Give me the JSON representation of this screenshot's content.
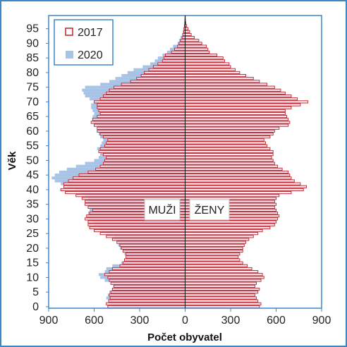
{
  "chart_data": {
    "type": "bar",
    "orientation": "population-pyramid",
    "xlabel": "Počet obyvatel",
    "ylabel": "Věk",
    "xlim": [
      -900,
      900
    ],
    "ylim": [
      0,
      99
    ],
    "x_ticks": [
      -900,
      -600,
      -300,
      0,
      300,
      600,
      900
    ],
    "x_tick_labels": [
      "900",
      "600",
      "300",
      "0",
      "300",
      "600",
      "900"
    ],
    "y_ticks": [
      0,
      5,
      10,
      15,
      20,
      25,
      30,
      35,
      40,
      45,
      50,
      55,
      60,
      65,
      70,
      75,
      80,
      85,
      90,
      95
    ],
    "grid": false,
    "legend_position": "top-left",
    "side_labels": {
      "male": "MUŽI",
      "female": "ŽENY"
    },
    "ages": [
      0,
      1,
      2,
      3,
      4,
      5,
      6,
      7,
      8,
      9,
      10,
      11,
      12,
      13,
      14,
      15,
      16,
      17,
      18,
      19,
      20,
      21,
      22,
      23,
      24,
      25,
      26,
      27,
      28,
      29,
      30,
      31,
      32,
      33,
      34,
      35,
      36,
      37,
      38,
      39,
      40,
      41,
      42,
      43,
      44,
      45,
      46,
      47,
      48,
      49,
      50,
      51,
      52,
      53,
      54,
      55,
      56,
      57,
      58,
      59,
      60,
      61,
      62,
      63,
      64,
      65,
      66,
      67,
      68,
      69,
      70,
      71,
      72,
      73,
      74,
      75,
      76,
      77,
      78,
      79,
      80,
      81,
      82,
      83,
      84,
      85,
      86,
      87,
      88,
      89,
      90,
      91,
      92,
      93,
      94,
      95,
      96,
      97,
      98,
      99
    ],
    "series": [
      {
        "name": "2017",
        "style": "outline",
        "color": "#c0202a",
        "fill": "#f2dfe7",
        "male": [
          510,
          520,
          505,
          495,
          500,
          490,
          480,
          470,
          490,
          500,
          510,
          530,
          500,
          480,
          430,
          410,
          400,
          390,
          390,
          410,
          420,
          430,
          450,
          480,
          520,
          560,
          600,
          630,
          640,
          640,
          660,
          650,
          630,
          610,
          640,
          660,
          660,
          680,
          720,
          790,
          820,
          800,
          800,
          770,
          740,
          700,
          640,
          590,
          560,
          540,
          530,
          520,
          540,
          570,
          560,
          530,
          520,
          510,
          540,
          560,
          580,
          580,
          600,
          620,
          610,
          580,
          560,
          570,
          580,
          580,
          600,
          560,
          540,
          520,
          500,
          470,
          420,
          360,
          320,
          290,
          270,
          240,
          210,
          180,
          150,
          140,
          130,
          90,
          70,
          50,
          40,
          30,
          20,
          15,
          10,
          8,
          5,
          3,
          2,
          1
        ],
        "female": [
          490,
          500,
          480,
          470,
          460,
          480,
          490,
          460,
          470,
          500,
          520,
          510,
          480,
          440,
          410,
          380,
          360,
          350,
          360,
          380,
          380,
          390,
          400,
          420,
          450,
          480,
          510,
          560,
          590,
          600,
          610,
          620,
          610,
          600,
          590,
          600,
          590,
          600,
          620,
          700,
          780,
          800,
          760,
          720,
          700,
          690,
          680,
          640,
          610,
          590,
          580,
          570,
          580,
          580,
          560,
          540,
          530,
          520,
          560,
          580,
          590,
          620,
          680,
          690,
          680,
          670,
          660,
          660,
          700,
          760,
          810,
          740,
          700,
          660,
          630,
          590,
          540,
          490,
          450,
          400,
          360,
          330,
          300,
          290,
          260,
          250,
          210,
          160,
          150,
          140,
          110,
          90,
          60,
          40,
          30,
          20,
          10,
          5,
          2,
          1
        ]
      },
      {
        "name": "2020",
        "style": "filled",
        "color": "#a7c4e6",
        "male": [
          480,
          490,
          500,
          520,
          510,
          500,
          470,
          470,
          480,
          530,
          560,
          570,
          530,
          520,
          480,
          420,
          400,
          390,
          400,
          410,
          430,
          440,
          440,
          470,
          470,
          520,
          560,
          570,
          600,
          610,
          630,
          650,
          640,
          630,
          640,
          640,
          640,
          640,
          660,
          690,
          730,
          780,
          820,
          860,
          880,
          860,
          830,
          780,
          720,
          660,
          600,
          570,
          560,
          550,
          580,
          560,
          550,
          540,
          560,
          570,
          580,
          570,
          580,
          600,
          610,
          610,
          600,
          610,
          620,
          620,
          600,
          630,
          660,
          670,
          680,
          660,
          560,
          500,
          460,
          420,
          380,
          340,
          280,
          230,
          200,
          180,
          150,
          120,
          100,
          80,
          50,
          40,
          30,
          20,
          15,
          10,
          6,
          4,
          2,
          1
        ]
      }
    ]
  },
  "legend": {
    "items": [
      {
        "label": "2017"
      },
      {
        "label": "2020"
      }
    ]
  }
}
